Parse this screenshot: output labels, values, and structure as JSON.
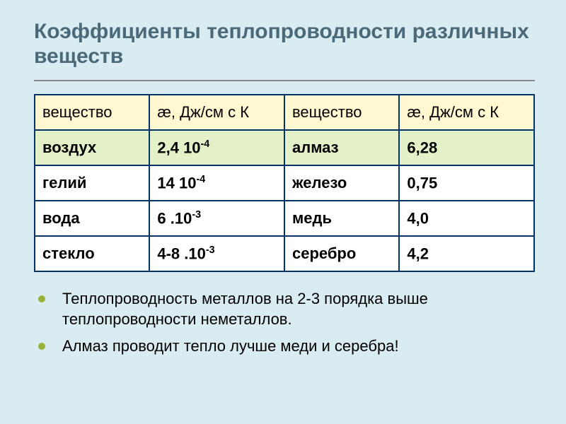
{
  "slide": {
    "title": "Коэффициенты теплопроводности различных веществ",
    "background_color": "#d9ecf2",
    "title_color": "#4a6a7a",
    "rule_color": "#888888"
  },
  "table": {
    "border_color": "#003366",
    "header_bg": "#fff8d0",
    "highlight_bg": "#e4f0c8",
    "normal_bg": "#ffffff",
    "headers": {
      "substance_a": "вещество",
      "unit_a": "æ, Дж/см с К",
      "substance_b": "вещество",
      "unit_b": "æ, Дж/см с К"
    },
    "rows": [
      {
        "left_sub": "воздух",
        "left_val_base": "2,4 10",
        "left_val_exp": "-4",
        "right_sub": "алмаз",
        "right_val_base": "6,28",
        "right_val_exp": "",
        "highlight": true
      },
      {
        "left_sub": "гелий",
        "left_val_base": "14 10",
        "left_val_exp": "-4",
        "right_sub": "железо",
        "right_val_base": "0,75",
        "right_val_exp": "",
        "highlight": false
      },
      {
        "left_sub": "вода",
        "left_val_base": "6 .10",
        "left_val_exp": "-3",
        "right_sub": "медь",
        "right_val_base": "4,0",
        "right_val_exp": "",
        "highlight": false
      },
      {
        "left_sub": "стекло",
        "left_val_base": "4-8 .10",
        "left_val_exp": "-3",
        "right_sub": "серебро",
        "right_val_base": "4,2",
        "right_val_exp": "",
        "highlight": false
      }
    ]
  },
  "bullets": [
    "Теплопроводность металлов на 2-3 порядка выше теплопроводности неметаллов.",
    "Алмаз проводит тепло лучше меди и серебра!"
  ],
  "bullet_color": "#9ab23a"
}
